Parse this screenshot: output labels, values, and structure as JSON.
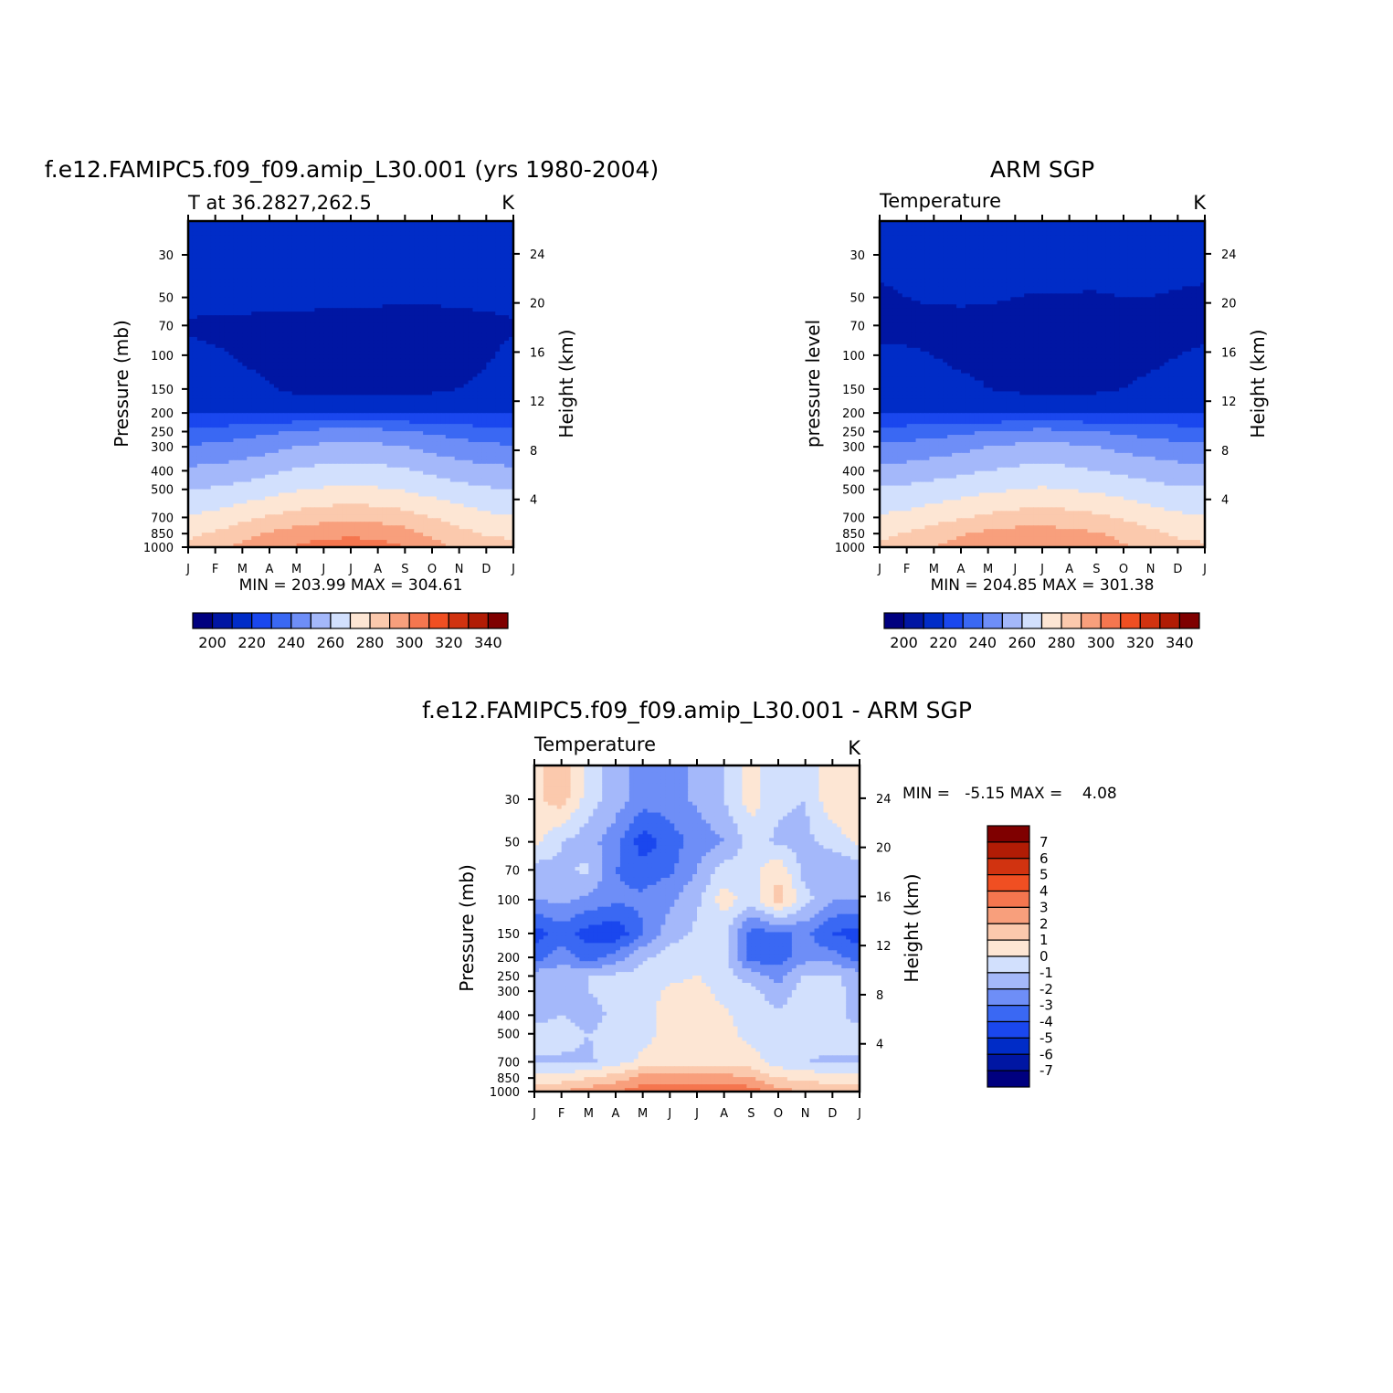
{
  "figure": {
    "x_months": [
      "J",
      "F",
      "M",
      "A",
      "M",
      "J",
      "J",
      "A",
      "S",
      "O",
      "N",
      "D",
      "J"
    ],
    "pressure_ticks": [
      "30",
      "50",
      "70",
      "100",
      "150",
      "200",
      "250",
      "300",
      "400",
      "500",
      "700",
      "850",
      "1000"
    ],
    "height_ticks": [
      "24",
      "20",
      "16",
      "12",
      "8",
      "4"
    ]
  },
  "panels": {
    "model": {
      "main_title": "f.e12.FAMIPC5.f09_f09.amip_L30.001 (yrs 1980-2004)",
      "subtitle": "T at 36.2827,262.5",
      "units": "K",
      "y_left_label": "Pressure (mb)",
      "y_right_label": "Height (km)",
      "minmax": "MIN = 203.99 MAX = 304.61"
    },
    "obs": {
      "main_title": "ARM SGP",
      "subtitle": "Temperature",
      "units": "K",
      "y_left_label": "pressure level",
      "y_right_label": "Height (km)",
      "minmax": "MIN = 204.85 MAX = 301.38"
    },
    "diff": {
      "main_title": "f.e12.FAMIPC5.f09_f09.amip_L30.001 - ARM SGP",
      "subtitle": "Temperature",
      "units": "K",
      "y_left_label": "Pressure (mb)",
      "y_right_label": "Height (km)",
      "minmax": "MIN =   -5.15 MAX =    4.08"
    }
  },
  "colorbars": {
    "abs": {
      "colors": [
        "#00007f",
        "#0016a3",
        "#002cc7",
        "#1a47ee",
        "#3a68f3",
        "#6e8ef7",
        "#a4b8fa",
        "#d2e0fd",
        "#fde6d4",
        "#fbc9ad",
        "#f89f7c",
        "#f5764f",
        "#f04f22",
        "#d13310",
        "#b11c05",
        "#7f0000"
      ],
      "labels": [
        "200",
        "220",
        "240",
        "260",
        "280",
        "300",
        "320",
        "340"
      ]
    },
    "diff": {
      "colors": [
        "#00007f",
        "#0016a3",
        "#002cc7",
        "#1a47ee",
        "#3a68f3",
        "#6e8ef7",
        "#a4b8fa",
        "#d2e0fd",
        "#fde6d4",
        "#fbc9ad",
        "#f89f7c",
        "#f5764f",
        "#f04f22",
        "#d13310",
        "#b11c05",
        "#7f0000"
      ],
      "labels": [
        "7",
        "6",
        "5",
        "4",
        "3",
        "2",
        "1",
        "0",
        "-1",
        "-2",
        "-3",
        "-4",
        "-5",
        "-6",
        "-7"
      ]
    }
  },
  "chart_data": [
    {
      "type": "heatmap",
      "title": "f.e12.FAMIPC5.f09_f09.amip_L30.001 (yrs 1980-2004)",
      "subtitle": "T at 36.2827,262.5",
      "units": "K",
      "x": [
        "J",
        "F",
        "M",
        "A",
        "M",
        "J",
        "J",
        "A",
        "S",
        "O",
        "N",
        "D",
        "J"
      ],
      "y": [
        1000,
        850,
        700,
        500,
        400,
        300,
        250,
        200,
        150,
        100,
        70,
        50,
        30
      ],
      "ylabel": "Pressure (mb)",
      "y2label": "Height (km)",
      "contour_levels": [
        195,
        200,
        205,
        210,
        215,
        220,
        225,
        230,
        235,
        240,
        245,
        250,
        255,
        260,
        265,
        270,
        275,
        280,
        285,
        290,
        295,
        300,
        305,
        310
      ],
      "z": [
        [
          283,
          287,
          293,
          298,
          301,
          304,
          305,
          304,
          300,
          294,
          288,
          284,
          283
        ],
        [
          278,
          281,
          286,
          291,
          295,
          297,
          298,
          297,
          294,
          288,
          283,
          279,
          278
        ],
        [
          271,
          273,
          277,
          281,
          284,
          286,
          287,
          286,
          284,
          280,
          276,
          272,
          271
        ],
        [
          260,
          261,
          263,
          266,
          269,
          271,
          272,
          271,
          269,
          266,
          263,
          261,
          260
        ],
        [
          252,
          253,
          255,
          258,
          261,
          263,
          264,
          263,
          261,
          258,
          255,
          253,
          252
        ],
        [
          241,
          242,
          244,
          247,
          250,
          252,
          253,
          252,
          250,
          247,
          244,
          242,
          241
        ],
        [
          233,
          234,
          236,
          238,
          241,
          243,
          244,
          243,
          241,
          238,
          236,
          234,
          233
        ],
        [
          219,
          219,
          219,
          219,
          220,
          221,
          221,
          221,
          220,
          219,
          219,
          219,
          219
        ],
        [
          215,
          214,
          213,
          211,
          207,
          206,
          206,
          206,
          207,
          208,
          210,
          212,
          215
        ],
        [
          212,
          211,
          209,
          207,
          206,
          205,
          205,
          205,
          206,
          206,
          207,
          209,
          212
        ],
        [
          209,
          208,
          208,
          207,
          207,
          207,
          206,
          206,
          206,
          207,
          207,
          208,
          209
        ],
        [
          213,
          213,
          213,
          213,
          213,
          212,
          212,
          212,
          211,
          211,
          212,
          212,
          213
        ],
        [
          217,
          217,
          217,
          217,
          217,
          218,
          219,
          219,
          218,
          217,
          217,
          217,
          217
        ]
      ],
      "min": 203.99,
      "max": 304.61
    },
    {
      "type": "heatmap",
      "title": "ARM SGP",
      "subtitle": "Temperature",
      "units": "K",
      "x": [
        "J",
        "F",
        "M",
        "A",
        "M",
        "J",
        "J",
        "A",
        "S",
        "O",
        "N",
        "D",
        "J"
      ],
      "y": [
        1000,
        850,
        700,
        500,
        400,
        300,
        250,
        200,
        150,
        100,
        70,
        50,
        30
      ],
      "ylabel": "pressure level",
      "y2label": "Height (km)",
      "contour_levels": [
        195,
        200,
        205,
        210,
        215,
        220,
        225,
        230,
        235,
        240,
        245,
        250,
        255,
        260,
        265,
        270,
        275,
        280,
        285,
        290,
        295,
        300,
        305,
        310
      ],
      "z": [
        [
          281,
          285,
          290,
          294,
          297,
          299,
          300,
          299,
          296,
          291,
          286,
          282,
          281
        ],
        [
          278,
          281,
          285,
          289,
          292,
          294,
          294,
          293,
          291,
          287,
          282,
          279,
          278
        ],
        [
          271,
          273,
          276,
          279,
          282,
          284,
          285,
          284,
          282,
          279,
          275,
          272,
          271
        ],
        [
          261,
          262,
          264,
          266,
          268,
          270,
          271,
          270,
          268,
          266,
          263,
          261,
          261
        ],
        [
          253,
          254,
          256,
          258,
          260,
          262,
          263,
          262,
          260,
          258,
          256,
          254,
          253
        ],
        [
          242,
          243,
          245,
          247,
          250,
          252,
          253,
          252,
          250,
          247,
          245,
          243,
          242
        ],
        [
          234,
          235,
          236,
          238,
          240,
          242,
          243,
          242,
          240,
          238,
          236,
          235,
          234
        ],
        [
          219,
          219,
          219,
          219,
          219,
          220,
          220,
          220,
          219,
          219,
          219,
          219,
          219
        ],
        [
          213,
          213,
          213,
          212,
          210,
          208,
          207,
          207,
          208,
          210,
          212,
          213,
          213
        ],
        [
          211,
          211,
          210,
          208,
          208,
          207,
          206,
          206,
          206,
          207,
          208,
          210,
          211
        ],
        [
          208,
          208,
          207,
          208,
          207,
          206,
          206,
          206,
          206,
          206,
          207,
          208,
          208
        ],
        [
          208,
          210,
          211,
          211,
          211,
          210,
          209,
          209,
          209,
          210,
          210,
          209,
          208
        ],
        [
          214,
          214,
          214,
          214,
          215,
          216,
          217,
          217,
          216,
          215,
          214,
          214,
          214
        ]
      ],
      "min": 204.85,
      "max": 301.38
    },
    {
      "type": "heatmap",
      "title": "f.e12.FAMIPC5.f09_f09.amip_L30.001 - ARM SGP",
      "subtitle": "Temperature",
      "units": "K",
      "x": [
        "J",
        "F",
        "M",
        "A",
        "M",
        "J",
        "J",
        "A",
        "S",
        "O",
        "N",
        "D",
        "J"
      ],
      "y": [
        1000,
        850,
        700,
        500,
        400,
        300,
        250,
        200,
        150,
        100,
        70,
        50,
        30
      ],
      "ylabel": "Pressure (mb)",
      "y2label": "Height (km)",
      "contour_levels": [
        -7,
        -6,
        -5,
        -4,
        -3,
        -2,
        -1,
        0,
        1,
        2,
        3,
        4,
        5,
        6,
        7
      ],
      "z": [
        [
          1.5,
          2.0,
          2.5,
          3.0,
          3.5,
          4.0,
          4.0,
          4.0,
          3.5,
          2.5,
          1.8,
          1.5,
          1.5
        ],
        [
          0.5,
          0.5,
          1.0,
          1.5,
          2.5,
          2.5,
          2.5,
          2.5,
          2.0,
          1.0,
          0.8,
          0.5,
          0.5
        ],
        [
          -1.2,
          -1.2,
          -1.2,
          -0.5,
          0.2,
          0.3,
          0.4,
          0.3,
          0.5,
          -0.5,
          -1.0,
          -1.2,
          -1.2
        ],
        [
          -0.5,
          -0.5,
          -1.0,
          -0.5,
          -0.3,
          0.3,
          0.8,
          0.3,
          -0.3,
          -0.8,
          -0.5,
          -0.5,
          -0.5
        ],
        [
          -1.5,
          -1.0,
          -1.5,
          -0.7,
          -0.4,
          0.5,
          0.9,
          0.2,
          -0.5,
          -0.8,
          -0.6,
          -0.5,
          -1.5
        ],
        [
          -1.5,
          -1.5,
          -1.0,
          -0.6,
          -0.5,
          0.2,
          0.5,
          -0.5,
          -0.7,
          -1.5,
          -0.5,
          -0.6,
          -1.5
        ],
        [
          -1.5,
          -1.2,
          -1.0,
          -0.8,
          -0.6,
          -0.3,
          0.0,
          -0.5,
          -1.5,
          -2.5,
          -0.8,
          -0.8,
          -1.5
        ],
        [
          -3.5,
          -2.5,
          -3.5,
          -2.5,
          -1.2,
          -0.5,
          -0.5,
          -0.5,
          -3.5,
          -3.5,
          -2.5,
          -2.5,
          -3.5
        ],
        [
          -4.5,
          -3.5,
          -4.5,
          -4.8,
          -3.0,
          -1.5,
          -0.8,
          -0.6,
          -3.5,
          -3.2,
          -2.8,
          -4.0,
          -4.5
        ],
        [
          -2.0,
          -1.8,
          -2.2,
          -2.8,
          -2.8,
          -2.2,
          -1.2,
          0.5,
          -0.5,
          1.5,
          -0.6,
          -2.0,
          -2.0
        ],
        [
          -1.5,
          -1.2,
          -0.8,
          -3.0,
          -3.5,
          -3.2,
          -2.0,
          -0.6,
          -0.5,
          0.8,
          -1.5,
          -2.0,
          -1.5
        ],
        [
          0.3,
          -1.0,
          -1.6,
          -2.6,
          -4.6,
          -3.5,
          -2.6,
          -2.0,
          -0.6,
          -1.2,
          -1.3,
          -0.6,
          0.3
        ],
        [
          0.8,
          1.5,
          -0.5,
          -1.5,
          -2.5,
          -2.5,
          -1.8,
          -1.0,
          0.5,
          -0.8,
          -1.0,
          0.8,
          0.8
        ]
      ],
      "min": -5.15,
      "max": 4.08
    }
  ]
}
